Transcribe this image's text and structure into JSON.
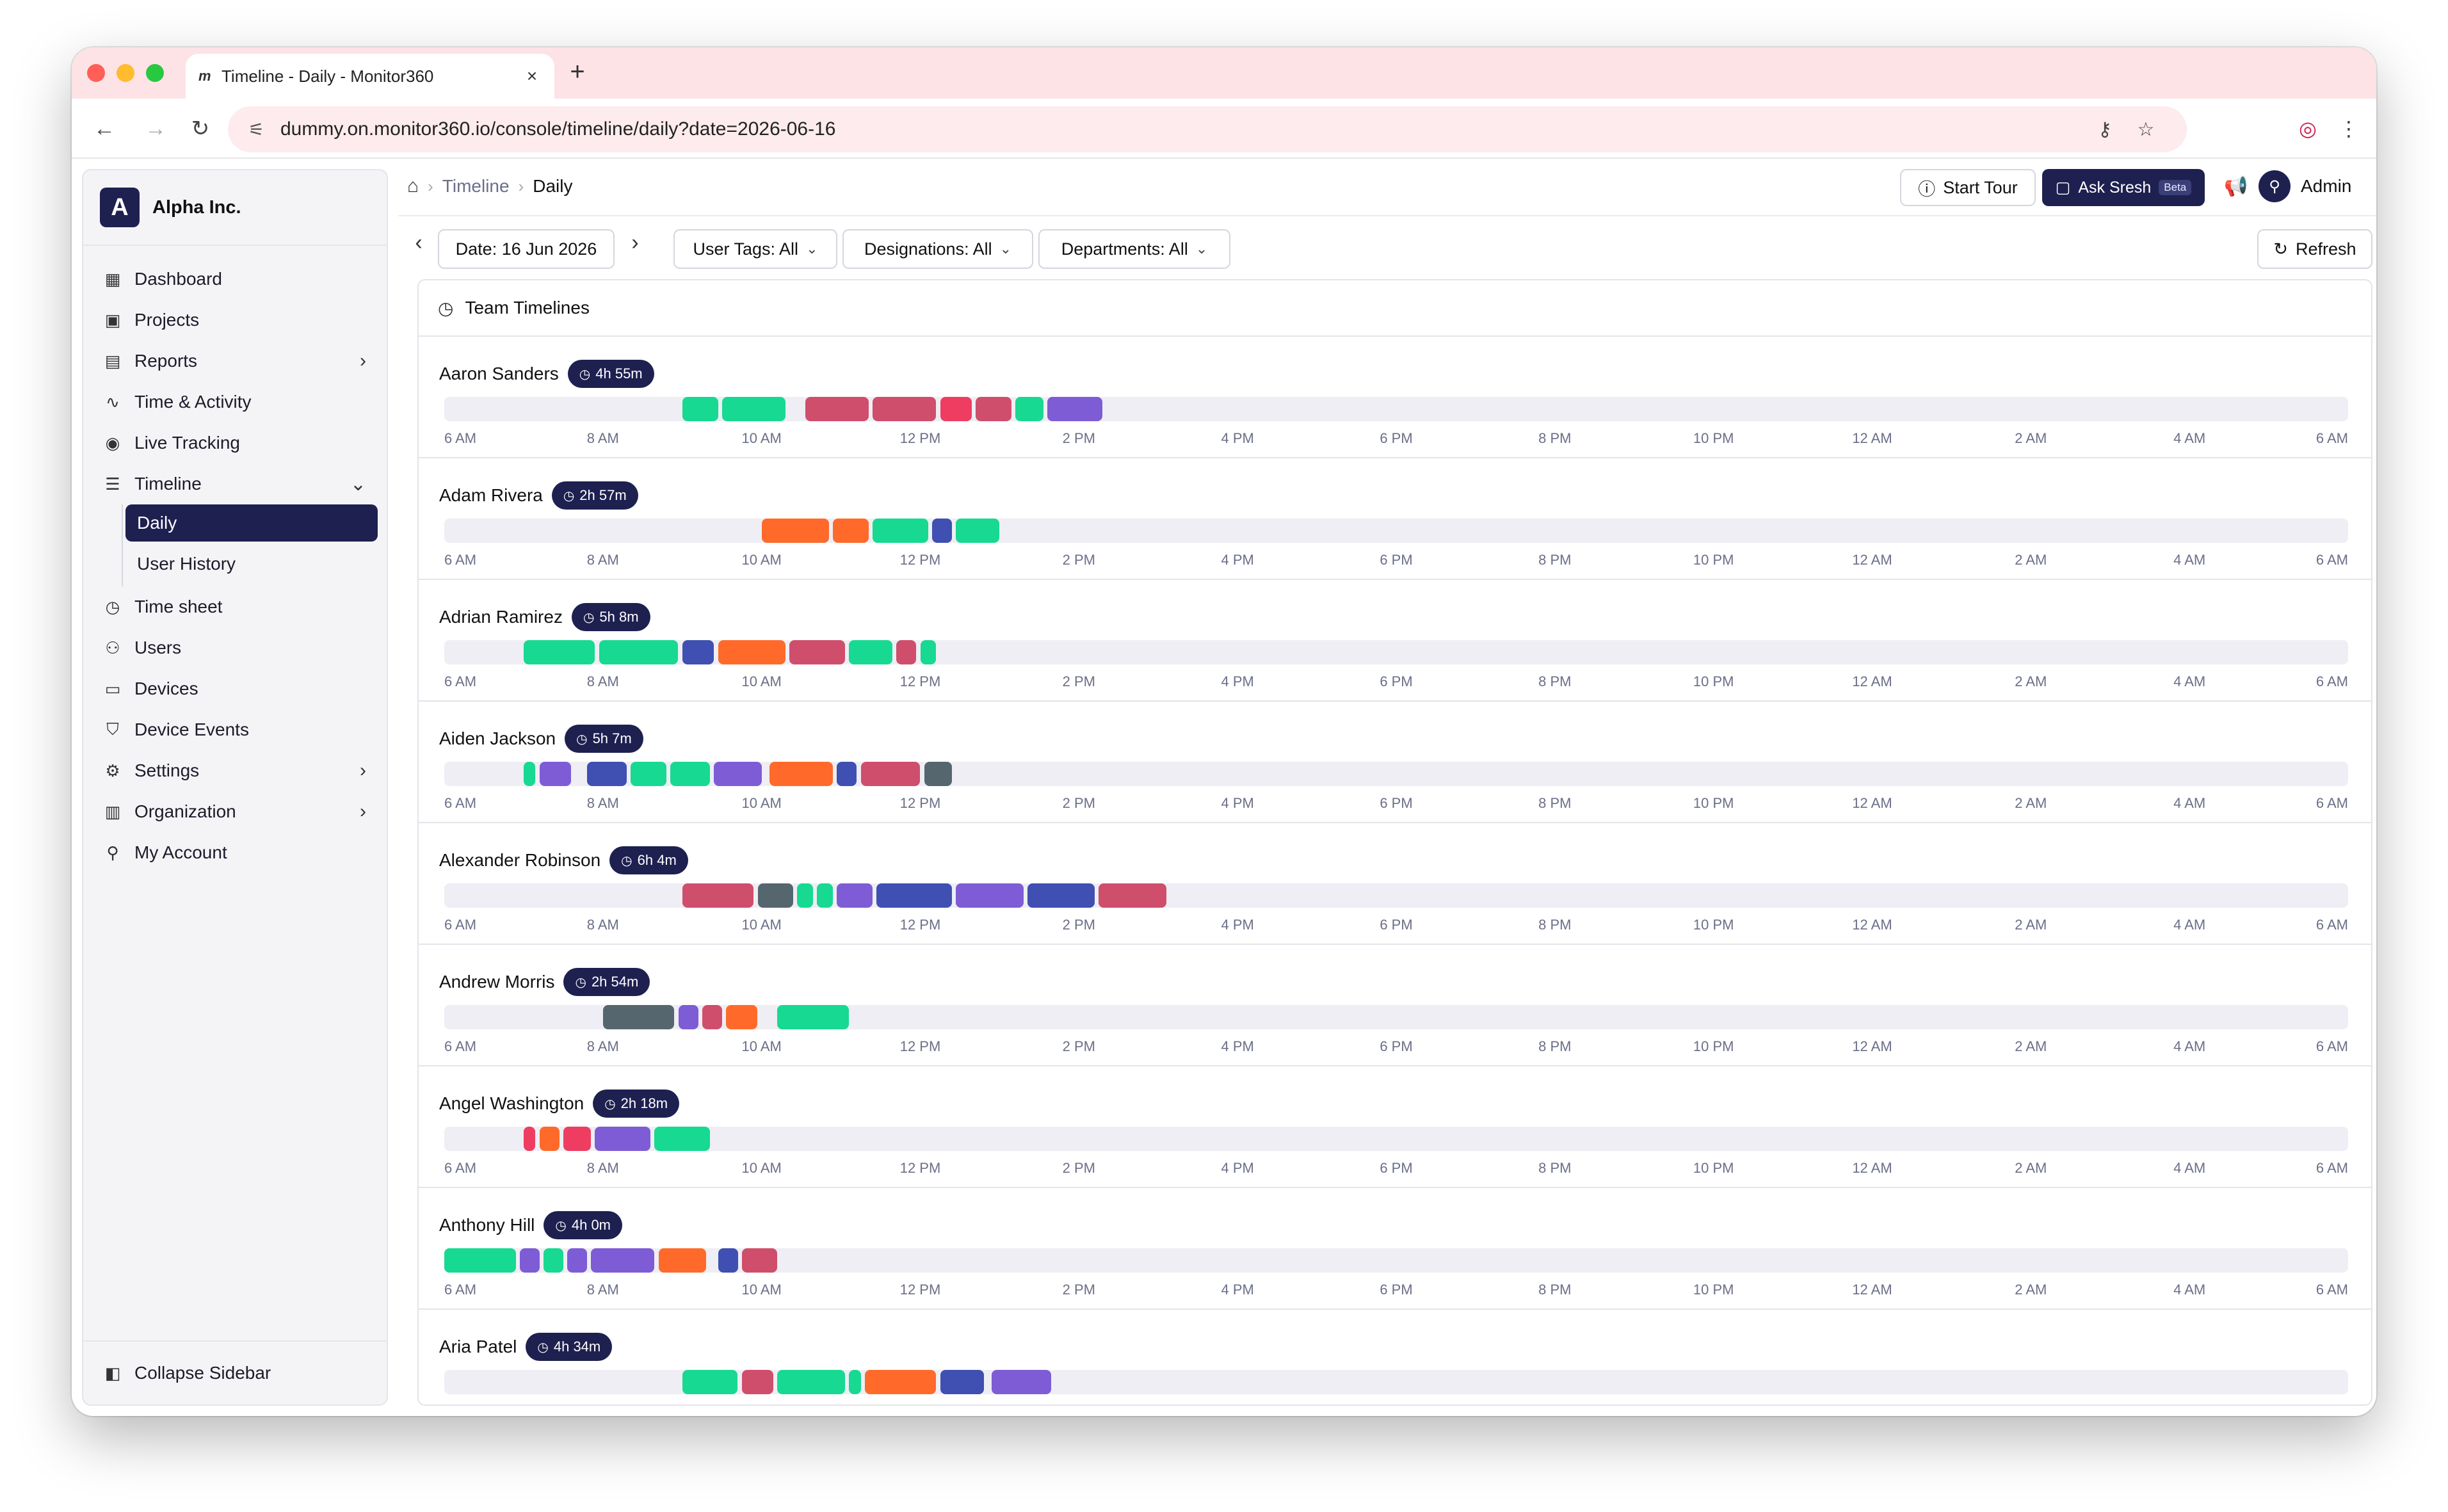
{
  "browser": {
    "tab_title": "Timeline - Daily - Monitor360",
    "tab_favicon": "m",
    "url": "dummy.on.monitor360.io/console/timeline/daily?date=2026-06-16",
    "traffic_colors": [
      "#ff5f57",
      "#febc2e",
      "#28c840"
    ]
  },
  "sidebar": {
    "org_initial": "A",
    "org_name": "Alpha Inc.",
    "items": [
      {
        "label": "Dashboard",
        "icon": "grid-icon",
        "glyph": "▦"
      },
      {
        "label": "Projects",
        "icon": "folder-icon",
        "glyph": "▣"
      },
      {
        "label": "Reports",
        "icon": "report-icon",
        "glyph": "▤"
      },
      {
        "label": "Time & Activity",
        "icon": "activity-icon",
        "glyph": "∿"
      },
      {
        "label": "Live Tracking",
        "icon": "broadcast-icon",
        "glyph": "◉"
      },
      {
        "label": "Timeline",
        "icon": "timeline-icon",
        "glyph": "☰"
      }
    ],
    "sub_items": [
      {
        "label": "Daily",
        "active": true
      },
      {
        "label": "User History",
        "active": false
      }
    ],
    "items_after": [
      {
        "label": "Time sheet",
        "icon": "stopwatch-icon",
        "glyph": "◷"
      },
      {
        "label": "Users",
        "icon": "users-icon",
        "glyph": "⚇"
      },
      {
        "label": "Devices",
        "icon": "monitor-icon",
        "glyph": "▭"
      },
      {
        "label": "Device Events",
        "icon": "shield-icon",
        "glyph": "⛉"
      },
      {
        "label": "Settings",
        "icon": "gear-icon",
        "glyph": "⚙"
      },
      {
        "label": "Organization",
        "icon": "building-icon",
        "glyph": "▥"
      },
      {
        "label": "My Account",
        "icon": "user-icon",
        "glyph": "⚲"
      }
    ],
    "collapse_label": "Collapse Sidebar"
  },
  "header": {
    "breadcrumb_parent": "Timeline",
    "breadcrumb_current": "Daily",
    "start_tour_label": "Start Tour",
    "ask_label": "Ask Sresh",
    "beta_label": "Beta",
    "user_name": "Admin"
  },
  "filters": {
    "date_label": "Date: 16 Jun 2026",
    "user_tags_label": "User Tags: All",
    "designations_label": "Designations: All",
    "departments_label": "Departments: All",
    "refresh_label": "Refresh"
  },
  "panel": {
    "title": "Team Timelines",
    "axis_ticks": [
      "6 AM",
      "8 AM",
      "10 AM",
      "12 PM",
      "2 PM",
      "4 PM",
      "6 PM",
      "8 PM",
      "10 PM",
      "12 AM",
      "2 AM",
      "4 AM",
      "6 AM"
    ],
    "palette": {
      "green": "#17d992",
      "red": "#cf4e6c",
      "pink": "#ef3d62",
      "purple": "#7d5cd6",
      "blue": "#3f4fb2",
      "orange": "#ff6a2b",
      "gray": "#56666f"
    },
    "rows": [
      {
        "name": "Aaron Sanders",
        "duration": "4h 55m",
        "segments": [
          [
            9.0,
            9.45,
            "green"
          ],
          [
            9.5,
            10.3,
            "green"
          ],
          [
            10.55,
            11.35,
            "red"
          ],
          [
            11.4,
            12.2,
            "red"
          ],
          [
            12.25,
            12.65,
            "pink"
          ],
          [
            12.7,
            13.15,
            "red"
          ],
          [
            13.2,
            13.55,
            "green"
          ],
          [
            13.6,
            14.3,
            "purple"
          ]
        ]
      },
      {
        "name": "Adam Rivera",
        "duration": "2h 57m",
        "segments": [
          [
            10.0,
            10.85,
            "orange"
          ],
          [
            10.9,
            11.35,
            "orange"
          ],
          [
            11.4,
            12.1,
            "green"
          ],
          [
            12.15,
            12.4,
            "blue"
          ],
          [
            12.45,
            13.0,
            "green"
          ]
        ]
      },
      {
        "name": "Adrian Ramirez",
        "duration": "5h 8m",
        "segments": [
          [
            7.0,
            7.9,
            "green"
          ],
          [
            7.95,
            8.95,
            "green"
          ],
          [
            9.0,
            9.4,
            "blue"
          ],
          [
            9.45,
            10.3,
            "orange"
          ],
          [
            10.35,
            11.05,
            "red"
          ],
          [
            11.1,
            11.65,
            "green"
          ],
          [
            11.7,
            11.95,
            "red"
          ],
          [
            12.0,
            12.2,
            "green"
          ]
        ]
      },
      {
        "name": "Aiden Jackson",
        "duration": "5h 7m",
        "segments": [
          [
            7.0,
            7.15,
            "green"
          ],
          [
            7.2,
            7.6,
            "purple"
          ],
          [
            7.8,
            8.3,
            "blue"
          ],
          [
            8.35,
            8.8,
            "green"
          ],
          [
            8.85,
            9.35,
            "green"
          ],
          [
            9.4,
            10.0,
            "purple"
          ],
          [
            10.1,
            10.9,
            "orange"
          ],
          [
            10.95,
            11.2,
            "blue"
          ],
          [
            11.25,
            12.0,
            "red"
          ],
          [
            12.05,
            12.4,
            "gray"
          ]
        ]
      },
      {
        "name": "Alexander Robinson",
        "duration": "6h 4m",
        "segments": [
          [
            9.0,
            9.9,
            "red"
          ],
          [
            9.95,
            10.4,
            "gray"
          ],
          [
            10.45,
            10.65,
            "green"
          ],
          [
            10.7,
            10.9,
            "green"
          ],
          [
            10.95,
            11.4,
            "purple"
          ],
          [
            11.45,
            12.4,
            "blue"
          ],
          [
            12.45,
            13.3,
            "purple"
          ],
          [
            13.35,
            14.2,
            "blue"
          ],
          [
            14.25,
            15.1,
            "red"
          ]
        ]
      },
      {
        "name": "Andrew Morris",
        "duration": "2h 54m",
        "segments": [
          [
            8.0,
            8.9,
            "gray"
          ],
          [
            8.95,
            9.2,
            "purple"
          ],
          [
            9.25,
            9.5,
            "red"
          ],
          [
            9.55,
            9.95,
            "orange"
          ],
          [
            10.2,
            11.1,
            "green"
          ]
        ]
      },
      {
        "name": "Angel Washington",
        "duration": "2h 18m",
        "segments": [
          [
            7.0,
            7.15,
            "pink"
          ],
          [
            7.2,
            7.45,
            "orange"
          ],
          [
            7.5,
            7.85,
            "pink"
          ],
          [
            7.9,
            8.6,
            "purple"
          ],
          [
            8.65,
            9.35,
            "green"
          ]
        ]
      },
      {
        "name": "Anthony Hill",
        "duration": "4h 0m",
        "segments": [
          [
            6.0,
            6.9,
            "green"
          ],
          [
            6.95,
            7.2,
            "purple"
          ],
          [
            7.25,
            7.5,
            "green"
          ],
          [
            7.55,
            7.8,
            "purple"
          ],
          [
            7.85,
            8.65,
            "purple"
          ],
          [
            8.7,
            9.3,
            "orange"
          ],
          [
            9.45,
            9.7,
            "blue"
          ],
          [
            9.75,
            10.2,
            "red"
          ]
        ]
      },
      {
        "name": "Aria Patel",
        "duration": "4h 34m",
        "segments": [
          [
            9.0,
            9.7,
            "green"
          ],
          [
            9.75,
            10.15,
            "red"
          ],
          [
            10.2,
            11.05,
            "green"
          ],
          [
            11.1,
            11.25,
            "green"
          ],
          [
            11.3,
            12.2,
            "orange"
          ],
          [
            12.25,
            12.8,
            "blue"
          ],
          [
            12.9,
            13.65,
            "purple"
          ]
        ]
      }
    ]
  }
}
